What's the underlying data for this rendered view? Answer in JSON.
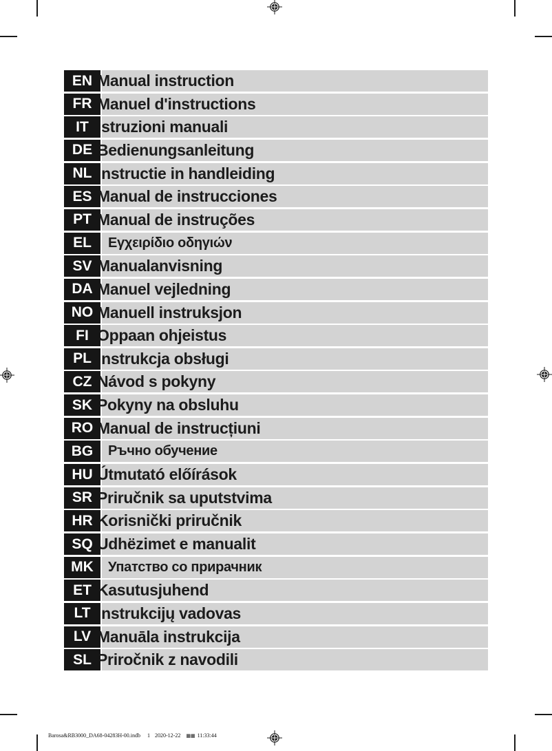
{
  "page": {
    "colors": {
      "row_bg": "#d3d3d3",
      "badge_bg": "#161616",
      "badge_text": "#ffffff",
      "label_text": "#1c1c1c"
    },
    "footer": {
      "filename": "Barosa&RB3000_DA68-04283H-00.indb",
      "page_number": "1",
      "date": "2020-12-22",
      "ampm_glyph": "▦▦",
      "time": "11:33:44"
    }
  },
  "rows": [
    {
      "code": "EN",
      "title": "Manual instruction",
      "emphasis": false
    },
    {
      "code": "FR",
      "title": "Manuel d'instructions",
      "emphasis": false
    },
    {
      "code": "IT",
      "title": "Istruzioni manuali",
      "emphasis": false
    },
    {
      "code": "DE",
      "title": "Bedienungsanleitung",
      "emphasis": false
    },
    {
      "code": "NL",
      "title": "Instructie in handleiding",
      "emphasis": false
    },
    {
      "code": "ES",
      "title": "Manual de instrucciones",
      "emphasis": false
    },
    {
      "code": "PT",
      "title": "Manual de instruções",
      "emphasis": false
    },
    {
      "code": "EL",
      "title": "Εγχειρίδιο οδηγιών",
      "emphasis": true
    },
    {
      "code": "SV",
      "title": "Manualanvisning",
      "emphasis": false
    },
    {
      "code": "DA",
      "title": "Manuel vejledning",
      "emphasis": false
    },
    {
      "code": "NO",
      "title": "Manuell instruksjon",
      "emphasis": false
    },
    {
      "code": "FI",
      "title": "Oppaan ohjeistus",
      "emphasis": false
    },
    {
      "code": "PL",
      "title": "Instrukcja obsługi",
      "emphasis": false
    },
    {
      "code": "CZ",
      "title": "Návod s pokyny",
      "emphasis": false
    },
    {
      "code": "SK",
      "title": "Pokyny na obsluhu",
      "emphasis": false
    },
    {
      "code": "RO",
      "title": "Manual de instrucțiuni",
      "emphasis": false
    },
    {
      "code": "BG",
      "title": "Ръчно обучение",
      "emphasis": true
    },
    {
      "code": "HU",
      "title": "Útmutató előírások",
      "emphasis": false
    },
    {
      "code": "SR",
      "title": "Priručnik sa uputstvima",
      "emphasis": false
    },
    {
      "code": "HR",
      "title": "Korisnički priručnik",
      "emphasis": false
    },
    {
      "code": "SQ",
      "title": "Udhëzimet e manualit",
      "emphasis": false
    },
    {
      "code": "MK",
      "title": "Упатство со прирачник",
      "emphasis": true
    },
    {
      "code": "ET",
      "title": "Kasutusjuhend",
      "emphasis": false
    },
    {
      "code": "LT",
      "title": "Instrukcijų vadovas",
      "emphasis": false
    },
    {
      "code": "LV",
      "title": "Manuāla instrukcija",
      "emphasis": false
    },
    {
      "code": "SL",
      "title": "Priročnik z navodili",
      "emphasis": false
    }
  ],
  "layout": {
    "row_top_start": 102,
    "row_pitch": 33.65
  }
}
